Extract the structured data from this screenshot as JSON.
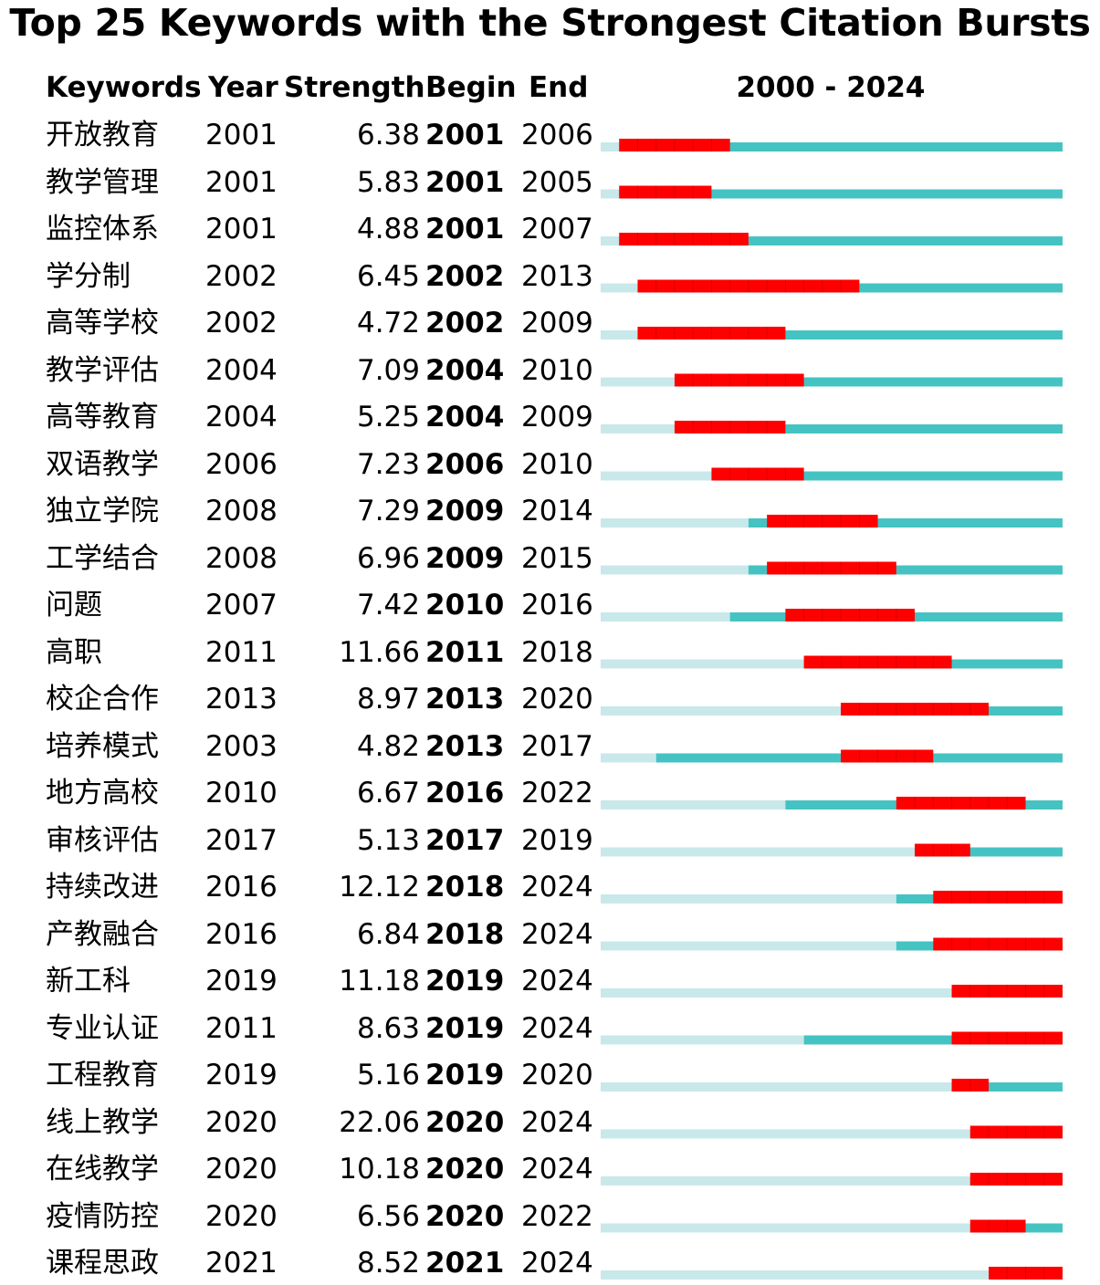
{
  "chart_data": {
    "type": "table",
    "title": "Top 25 Keywords with the Strongest Citation Bursts",
    "columns": [
      "Keywords",
      "Year",
      "Strength",
      "Begin",
      "End"
    ],
    "range_label": "2000 - 2024",
    "range": [
      2000,
      2024
    ],
    "colors": {
      "before": "#c8e8ea",
      "after_year": "#45c3c3",
      "burst": "#ff0000"
    },
    "rows": [
      {
        "keyword": "开放教育",
        "year": "2001",
        "strength": "6.38",
        "begin": "2001",
        "end": "2006"
      },
      {
        "keyword": "教学管理",
        "year": "2001",
        "strength": "5.83",
        "begin": "2001",
        "end": "2005"
      },
      {
        "keyword": "监控体系",
        "year": "2001",
        "strength": "4.88",
        "begin": "2001",
        "end": "2007"
      },
      {
        "keyword": "学分制",
        "year": "2002",
        "strength": "6.45",
        "begin": "2002",
        "end": "2013"
      },
      {
        "keyword": "高等学校",
        "year": "2002",
        "strength": "4.72",
        "begin": "2002",
        "end": "2009"
      },
      {
        "keyword": "教学评估",
        "year": "2004",
        "strength": "7.09",
        "begin": "2004",
        "end": "2010"
      },
      {
        "keyword": "高等教育",
        "year": "2004",
        "strength": "5.25",
        "begin": "2004",
        "end": "2009"
      },
      {
        "keyword": "双语教学",
        "year": "2006",
        "strength": "7.23",
        "begin": "2006",
        "end": "2010"
      },
      {
        "keyword": "独立学院",
        "year": "2008",
        "strength": "7.29",
        "begin": "2009",
        "end": "2014"
      },
      {
        "keyword": "工学结合",
        "year": "2008",
        "strength": "6.96",
        "begin": "2009",
        "end": "2015"
      },
      {
        "keyword": "问题",
        "year": "2007",
        "strength": "7.42",
        "begin": "2010",
        "end": "2016"
      },
      {
        "keyword": "高职",
        "year": "2011",
        "strength": "11.66",
        "begin": "2011",
        "end": "2018"
      },
      {
        "keyword": "校企合作",
        "year": "2013",
        "strength": "8.97",
        "begin": "2013",
        "end": "2020"
      },
      {
        "keyword": "培养模式",
        "year": "2003",
        "strength": "4.82",
        "begin": "2013",
        "end": "2017"
      },
      {
        "keyword": "地方高校",
        "year": "2010",
        "strength": "6.67",
        "begin": "2016",
        "end": "2022"
      },
      {
        "keyword": "审核评估",
        "year": "2017",
        "strength": "5.13",
        "begin": "2017",
        "end": "2019"
      },
      {
        "keyword": "持续改进",
        "year": "2016",
        "strength": "12.12",
        "begin": "2018",
        "end": "2024"
      },
      {
        "keyword": "产教融合",
        "year": "2016",
        "strength": "6.84",
        "begin": "2018",
        "end": "2024"
      },
      {
        "keyword": "新工科",
        "year": "2019",
        "strength": "11.18",
        "begin": "2019",
        "end": "2024"
      },
      {
        "keyword": "专业认证",
        "year": "2011",
        "strength": "8.63",
        "begin": "2019",
        "end": "2024"
      },
      {
        "keyword": "工程教育",
        "year": "2019",
        "strength": "5.16",
        "begin": "2019",
        "end": "2020"
      },
      {
        "keyword": "线上教学",
        "year": "2020",
        "strength": "22.06",
        "begin": "2020",
        "end": "2024"
      },
      {
        "keyword": "在线教学",
        "year": "2020",
        "strength": "10.18",
        "begin": "2020",
        "end": "2024"
      },
      {
        "keyword": "疫情防控",
        "year": "2020",
        "strength": "6.56",
        "begin": "2020",
        "end": "2022"
      },
      {
        "keyword": "课程思政",
        "year": "2021",
        "strength": "8.52",
        "begin": "2021",
        "end": "2024"
      }
    ]
  }
}
